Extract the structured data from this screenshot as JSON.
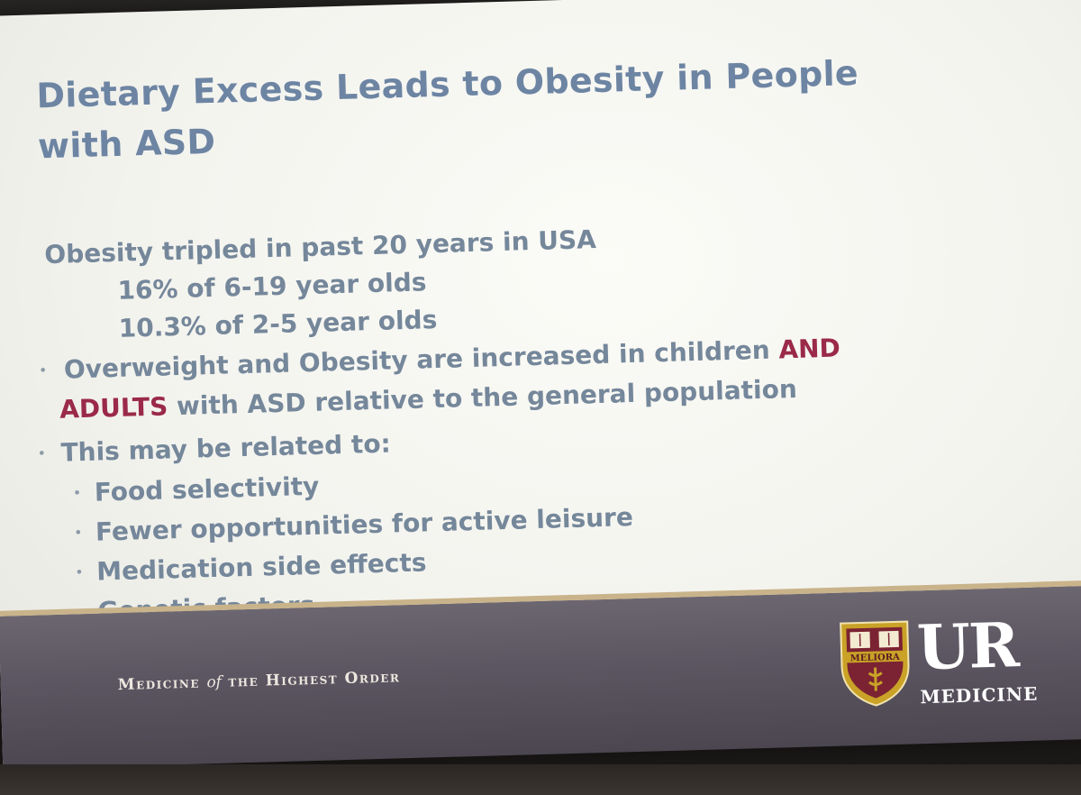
{
  "slide": {
    "title_line1": "Dietary Excess Leads to Obesity in People",
    "title_line2": "with ASD",
    "stat_heading": "Obesity tripled in past 20 years in USA",
    "stats": [
      "16% of 6-19 year olds",
      "10.3% of 2-5 year olds"
    ],
    "bullet1_part1": "Overweight and Obesity are increased in children",
    "bullet1_emph1": "AND",
    "bullet1_emph2": "ADULTS",
    "bullet1_part2": "with ASD relative to the general population",
    "bullet2": "This may be related to:",
    "sub_bullets": [
      "Food selectivity",
      "Fewer opportunities for active leisure",
      "Medication side effects",
      "Genetic factors"
    ],
    "bullet_glyph": "•"
  },
  "footer": {
    "tagline_part1": "Medicine",
    "tagline_of": "of",
    "tagline_part2": "the Highest Order",
    "logo_main": "UR",
    "logo_sub": "MEDICINE",
    "crest_motto": "MELIORA",
    "crest_icon": "university-crest-icon"
  },
  "colors": {
    "title": "#6d85a3",
    "body_text": "#75879a",
    "emphasis": "#9a2a48",
    "footer_band": "#5d5763",
    "footer_rule": "#c9b38a",
    "crest_gold": "#c9a227",
    "crest_maroon": "#7b2332"
  }
}
